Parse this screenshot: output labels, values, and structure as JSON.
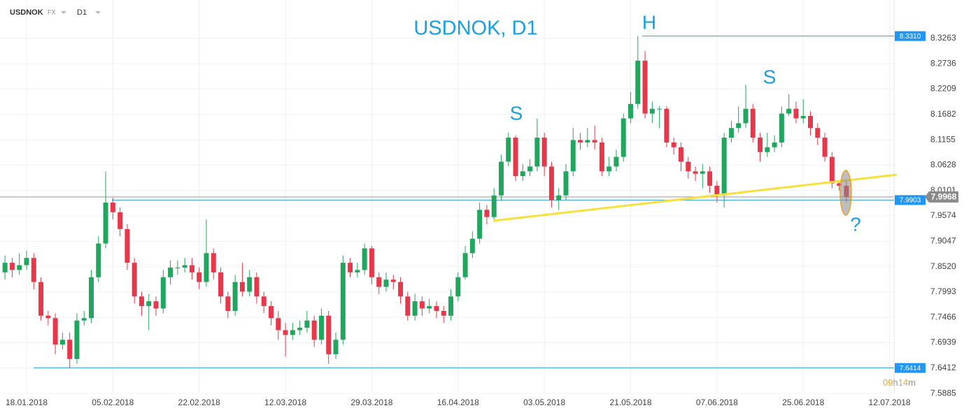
{
  "header": {
    "symbol": "USDNOK",
    "market": "FX",
    "timeframe": "D1"
  },
  "chart_data": {
    "type": "candlestick",
    "title": "USDNOK, D1",
    "annotations": [
      "H",
      "S",
      "S",
      "?"
    ],
    "countdown": [
      "09",
      "h",
      "14",
      "m"
    ],
    "up_color": "#22a65f",
    "down_color": "#e5394b",
    "grid": true,
    "ylim": [
      7.564,
      8.406
    ],
    "yticks": [
      8.3263,
      8.2736,
      8.2209,
      8.1682,
      8.1155,
      8.0628,
      8.0101,
      7.9574,
      7.9047,
      {
        "value": 7.852,
        "label": "7.8520"
      },
      7.7993,
      7.7466,
      7.6939,
      7.6412,
      7.5885
    ],
    "levels": [
      {
        "value": 8.331,
        "label": "8.3310"
      },
      7.9903,
      7.6414
    ],
    "categories": [
      null,
      null,
      null,
      "18.01.2018",
      null,
      null,
      null,
      null,
      null,
      null,
      null,
      null,
      null,
      null,
      null,
      "05.02.2018",
      null,
      null,
      null,
      null,
      null,
      null,
      null,
      null,
      null,
      null,
      null,
      "22.02.2018",
      null,
      null,
      null,
      null,
      null,
      null,
      null,
      null,
      null,
      null,
      null,
      "12.03.2018",
      null,
      null,
      null,
      null,
      null,
      null,
      null,
      null,
      null,
      null,
      null,
      "29.03.2018",
      null,
      null,
      null,
      null,
      null,
      null,
      null,
      null,
      null,
      null,
      null,
      "16.04.2018",
      null,
      null,
      null,
      null,
      null,
      null,
      null,
      null,
      null,
      null,
      null,
      "03.05.2018",
      null,
      null,
      null,
      null,
      null,
      null,
      null,
      null,
      null,
      null,
      null,
      "21.05.2018",
      null,
      null,
      null,
      null,
      null,
      null,
      null,
      null,
      null,
      null,
      null,
      "07.06.2018",
      null,
      null,
      null,
      null,
      null,
      null,
      null,
      null,
      null,
      null,
      null,
      "25.06.2018",
      null,
      null,
      null,
      null,
      null,
      null,
      null,
      null,
      null,
      null,
      null,
      "12.07.2018"
    ],
    "open": [
      7.84,
      7.86,
      7.845,
      7.855,
      7.87,
      7.82,
      7.75,
      7.745,
      7.69,
      7.7,
      7.66,
      7.74,
      7.745,
      7.83,
      7.9,
      7.985,
      7.965,
      7.93,
      7.86,
      7.79,
      7.77,
      7.78,
      7.765,
      7.83,
      7.85,
      7.85,
      7.855,
      7.84,
      7.82,
      7.88,
      7.84,
      7.79,
      7.76,
      7.82,
      7.8,
      7.83,
      7.79,
      7.77,
      7.745,
      7.72,
      7.71,
      7.72,
      7.725,
      7.74,
      7.7,
      7.75,
      7.67,
      7.7,
      7.86,
      7.84,
      7.845,
      7.89,
      7.83,
      7.81,
      7.825,
      7.82,
      7.79,
      7.75,
      7.78,
      7.765,
      7.77,
      7.76,
      7.75,
      7.79,
      7.83,
      7.88,
      7.91,
      7.97,
      7.955,
      8.0,
      8.07,
      8.12,
      8.04,
      8.05,
      8.06,
      8.12,
      8.06,
      7.99,
      8.0,
      8.05,
      8.115,
      8.11,
      8.115,
      8.11,
      8.05,
      8.06,
      8.08,
      8.16,
      8.19,
      8.28,
      8.17,
      8.18,
      8.18,
      8.11,
      8.1,
      8.07,
      8.05,
      8.045,
      8.05,
      8.02,
      8.0,
      8.12,
      8.14,
      8.15,
      8.18,
      8.12,
      8.09,
      8.1,
      8.11,
      8.17,
      8.18,
      8.16,
      8.165,
      8.14,
      8.12,
      8.08,
      8.025,
      8.02,
      null,
      null,
      null,
      null,
      null,
      null
    ],
    "high": [
      7.875,
      7.87,
      7.88,
      7.885,
      7.88,
      7.83,
      7.76,
      7.755,
      7.715,
      7.715,
      7.755,
      7.76,
      7.845,
      7.915,
      8.05,
      7.995,
      7.975,
      7.94,
      7.87,
      7.8,
      7.795,
      7.79,
      7.845,
      7.865,
      7.865,
      7.87,
      7.87,
      7.85,
      7.95,
      7.89,
      7.85,
      7.8,
      7.835,
      7.86,
      7.845,
      7.84,
      7.8,
      7.78,
      7.76,
      7.735,
      7.735,
      7.74,
      7.76,
      7.75,
      7.765,
      7.76,
      7.715,
      7.875,
      7.87,
      7.86,
      7.9,
      7.895,
      7.84,
      7.84,
      7.835,
      7.83,
      7.8,
      7.795,
      7.79,
      7.785,
      7.78,
      7.77,
      7.805,
      7.84,
      7.895,
      7.925,
      7.985,
      7.98,
      8.015,
      8.085,
      8.13,
      8.125,
      8.065,
      8.075,
      8.16,
      8.13,
      8.07,
      8.015,
      8.065,
      8.14,
      8.13,
      8.14,
      8.145,
      8.12,
      8.08,
      8.095,
      8.17,
      8.215,
      8.331,
      8.3,
      8.195,
      8.185,
      8.185,
      8.12,
      8.11,
      8.08,
      8.06,
      8.065,
      8.06,
      8.03,
      8.13,
      8.155,
      8.185,
      8.23,
      8.19,
      8.13,
      8.13,
      8.125,
      8.185,
      8.21,
      8.195,
      8.2,
      8.175,
      8.15,
      8.13,
      8.09,
      8.03,
      8.03,
      null,
      null,
      null,
      null,
      null,
      null
    ],
    "low": [
      7.825,
      7.83,
      7.835,
      7.845,
      7.805,
      7.74,
      7.73,
      7.67,
      7.68,
      7.641,
      7.65,
      7.73,
      7.735,
      7.82,
      7.89,
      7.95,
      7.915,
      7.845,
      7.775,
      7.75,
      7.72,
      7.75,
      7.755,
      7.815,
      7.835,
      7.84,
      7.825,
      7.805,
      7.81,
      7.825,
      7.775,
      7.745,
      7.75,
      7.79,
      7.79,
      7.775,
      7.755,
      7.73,
      7.7,
      7.665,
      7.7,
      7.71,
      7.715,
      7.685,
      7.69,
      7.65,
      7.66,
      7.69,
      7.83,
      7.83,
      7.835,
      7.815,
      7.795,
      7.8,
      7.805,
      7.775,
      7.74,
      7.74,
      7.75,
      7.755,
      7.745,
      7.735,
      7.74,
      7.78,
      7.825,
      7.87,
      7.9,
      7.94,
      7.95,
      7.99,
      8.06,
      8.03,
      8.03,
      8.04,
      8.05,
      8.04,
      7.975,
      7.97,
      7.99,
      8.04,
      8.095,
      8.1,
      8.095,
      8.04,
      8.04,
      8.05,
      8.07,
      8.15,
      8.18,
      8.16,
      8.15,
      8.14,
      8.1,
      8.085,
      8.05,
      8.035,
      8.03,
      8.015,
      8.005,
      7.985,
      7.975,
      8.11,
      8.13,
      8.14,
      8.11,
      8.07,
      8.08,
      8.09,
      8.1,
      8.165,
      8.15,
      8.15,
      8.125,
      8.105,
      8.07,
      8.015,
      8.01,
      7.985,
      null,
      null,
      null,
      null,
      null,
      null
    ],
    "close": [
      7.86,
      7.845,
      7.855,
      7.87,
      7.82,
      7.75,
      7.745,
      7.69,
      7.7,
      7.66,
      7.74,
      7.745,
      7.83,
      7.9,
      7.985,
      7.965,
      7.93,
      7.86,
      7.79,
      7.77,
      7.78,
      7.765,
      7.83,
      7.85,
      7.85,
      7.855,
      7.84,
      7.82,
      7.88,
      7.84,
      7.79,
      7.76,
      7.82,
      7.8,
      7.83,
      7.79,
      7.77,
      7.745,
      7.72,
      7.71,
      7.72,
      7.725,
      7.74,
      7.7,
      7.75,
      7.67,
      7.7,
      7.86,
      7.84,
      7.845,
      7.89,
      7.83,
      7.81,
      7.825,
      7.82,
      7.79,
      7.75,
      7.78,
      7.765,
      7.77,
      7.76,
      7.75,
      7.79,
      7.83,
      7.88,
      7.91,
      7.97,
      7.955,
      8.0,
      8.07,
      8.12,
      8.04,
      8.05,
      8.06,
      8.12,
      8.06,
      7.99,
      8.0,
      8.05,
      8.115,
      8.11,
      8.115,
      8.11,
      8.05,
      8.06,
      8.08,
      8.16,
      8.19,
      8.28,
      8.17,
      8.18,
      8.18,
      8.11,
      8.1,
      8.07,
      8.05,
      8.045,
      8.05,
      8.02,
      8.0,
      8.12,
      8.14,
      8.15,
      8.18,
      8.12,
      8.09,
      8.1,
      8.11,
      8.17,
      8.18,
      8.16,
      8.165,
      8.14,
      8.12,
      8.08,
      8.025,
      8.02,
      7.9968,
      null,
      null,
      null,
      null,
      null,
      null
    ]
  }
}
